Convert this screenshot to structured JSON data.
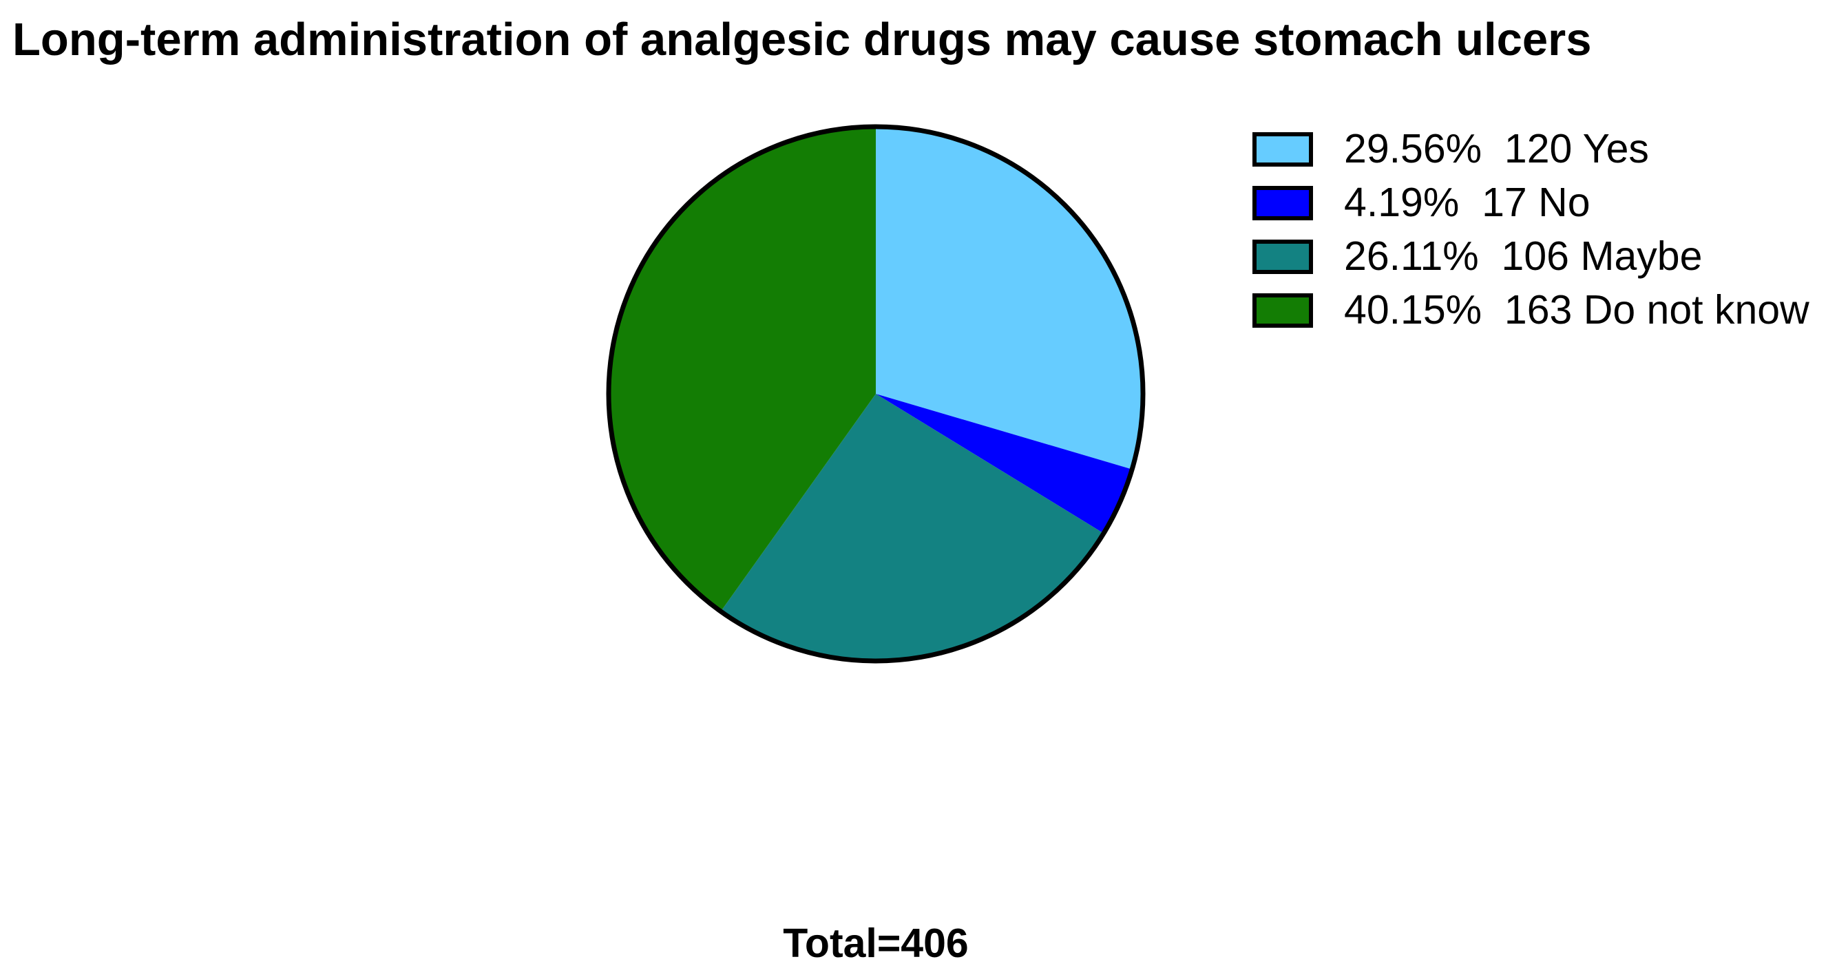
{
  "chart_data": {
    "type": "pie",
    "title": "Long-term administration of analgesic drugs may cause stomach ulcers",
    "total_label": "Total=406",
    "total": 406,
    "legend_position": "right",
    "slices": [
      {
        "label": "Yes",
        "count": 120,
        "percent": 29.56,
        "percent_label": "29.56%",
        "count_label": "120",
        "color": "#66CCFF"
      },
      {
        "label": "No",
        "count": 17,
        "percent": 4.19,
        "percent_label": "4.19%",
        "count_label": "17",
        "color": "#0000FF"
      },
      {
        "label": "Maybe",
        "count": 106,
        "percent": 26.11,
        "percent_label": "26.11%",
        "count_label": "106",
        "color": "#138282"
      },
      {
        "label": "Do not know",
        "count": 163,
        "percent": 40.15,
        "percent_label": "40.15%",
        "count_label": "163",
        "color": "#137D04"
      }
    ]
  }
}
